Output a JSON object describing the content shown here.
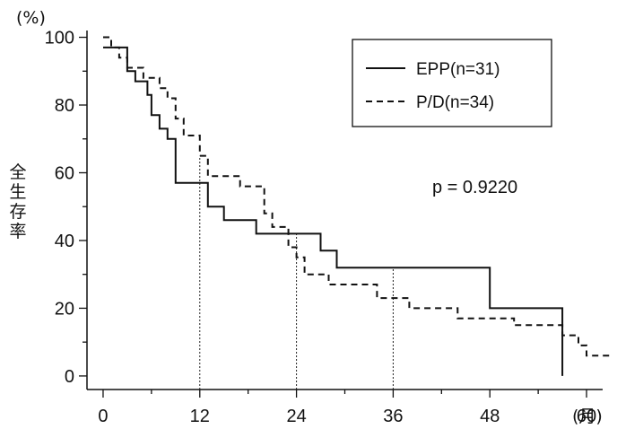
{
  "chart_data": {
    "type": "line",
    "subtype": "kaplan-meier-step",
    "ylabel": "全生存率",
    "y_unit": "(%)",
    "x_unit": "(月)",
    "xlim": [
      -2,
      62
    ],
    "ylim": [
      -4,
      102
    ],
    "x_ticks": [
      0,
      12,
      24,
      36,
      48,
      60
    ],
    "y_ticks": [
      0,
      20,
      40,
      60,
      80,
      100
    ],
    "grid": false,
    "legend_position": "top-right",
    "annotation": "p = 0.9220",
    "reference_lines_x": [
      12,
      24,
      36
    ],
    "colors": {
      "line": "#111111",
      "axis": "#111111"
    },
    "series": [
      {
        "name": "EPP(n=31)",
        "style": "solid",
        "points": [
          [
            0,
            97
          ],
          [
            3,
            97
          ],
          [
            3,
            90
          ],
          [
            4,
            90
          ],
          [
            4,
            87
          ],
          [
            5.5,
            87
          ],
          [
            5.5,
            83
          ],
          [
            6,
            83
          ],
          [
            6,
            77
          ],
          [
            7,
            77
          ],
          [
            7,
            73
          ],
          [
            8,
            73
          ],
          [
            8,
            70
          ],
          [
            9,
            70
          ],
          [
            9,
            57
          ],
          [
            13,
            57
          ],
          [
            13,
            50
          ],
          [
            15,
            50
          ],
          [
            15,
            46
          ],
          [
            19,
            46
          ],
          [
            19,
            42
          ],
          [
            27,
            42
          ],
          [
            27,
            37
          ],
          [
            29,
            37
          ],
          [
            29,
            32
          ],
          [
            48,
            32
          ],
          [
            48,
            20
          ],
          [
            57,
            20
          ],
          [
            57,
            0
          ]
        ]
      },
      {
        "name": "P/D(n=34)",
        "style": "dashed",
        "points": [
          [
            0,
            100
          ],
          [
            1,
            100
          ],
          [
            1,
            97
          ],
          [
            2,
            97
          ],
          [
            2,
            94
          ],
          [
            3,
            94
          ],
          [
            3,
            91
          ],
          [
            5,
            91
          ],
          [
            5,
            88
          ],
          [
            7,
            88
          ],
          [
            7,
            85
          ],
          [
            8,
            85
          ],
          [
            8,
            82
          ],
          [
            9,
            82
          ],
          [
            9,
            76
          ],
          [
            10,
            76
          ],
          [
            10,
            71
          ],
          [
            12,
            71
          ],
          [
            12,
            65
          ],
          [
            13,
            65
          ],
          [
            13,
            59
          ],
          [
            17,
            59
          ],
          [
            17,
            56
          ],
          [
            20,
            56
          ],
          [
            20,
            48
          ],
          [
            21,
            48
          ],
          [
            21,
            44
          ],
          [
            23,
            44
          ],
          [
            23,
            38
          ],
          [
            24,
            38
          ],
          [
            24,
            35
          ],
          [
            25,
            35
          ],
          [
            25,
            30
          ],
          [
            28,
            30
          ],
          [
            28,
            27
          ],
          [
            34,
            27
          ],
          [
            34,
            23
          ],
          [
            38,
            23
          ],
          [
            38,
            20
          ],
          [
            44,
            20
          ],
          [
            44,
            17
          ],
          [
            51,
            17
          ],
          [
            51,
            15
          ],
          [
            57,
            15
          ],
          [
            57,
            12
          ],
          [
            59,
            12
          ],
          [
            59,
            9
          ],
          [
            60,
            9
          ],
          [
            60,
            6
          ],
          [
            63,
            6
          ]
        ]
      }
    ]
  }
}
